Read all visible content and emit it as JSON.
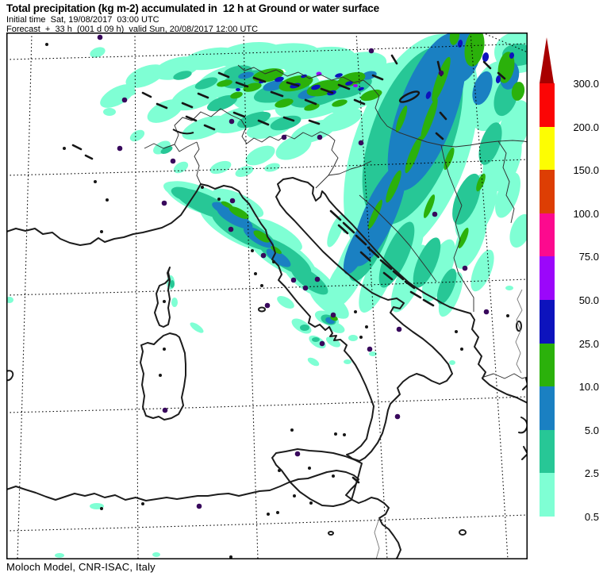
{
  "header": {
    "title": "Total precipitation (kg m-2) accumulated in  12 h at Ground or water surface",
    "initial_time": "Initial time  Sat, 19/08/2017  03:00 UTC",
    "forecast": "Forecast  +  33 h  (001 d 09 h)  valid Sun, 20/08/2017 12:00 UTC"
  },
  "footer": {
    "credit": "Moloch Model, CNR-ISAC, Italy"
  },
  "colorbar": {
    "units": "kg m-2",
    "arrow_color": "#a80000",
    "segments": [
      {
        "top_label": "300.0",
        "color": "#fb0505"
      },
      {
        "top_label": "200.0",
        "color": "#fdfd02"
      },
      {
        "top_label": "150.0",
        "color": "#dd3e04"
      },
      {
        "top_label": "100.0",
        "color": "#fc0a8e"
      },
      {
        "top_label": "75.0",
        "color": "#9b07fa"
      },
      {
        "top_label": "50.0",
        "color": "#0d13bd"
      },
      {
        "top_label": "25.0",
        "color": "#2bb10b"
      },
      {
        "top_label": "10.0",
        "color": "#1a80c2"
      },
      {
        "top_label": "5.0",
        "color": "#27c796"
      },
      {
        "top_label": "2.5",
        "color": "#7fffd4"
      }
    ],
    "bottom_label": "0.5"
  },
  "map": {
    "city_dot_color": "#38085c",
    "coast_color": "#1c1c1c",
    "border_color": "#2e2e2e",
    "grid_color": "#000000",
    "background": "#ffffff"
  }
}
